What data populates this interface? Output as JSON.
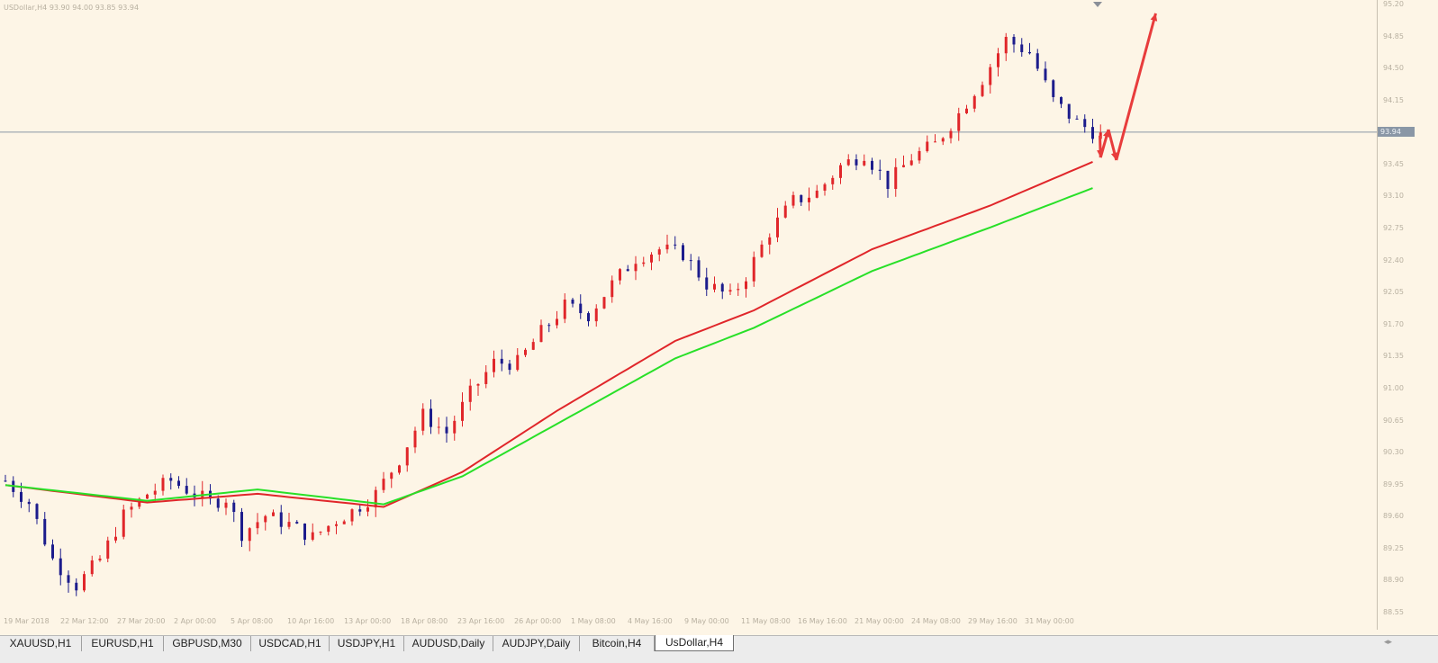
{
  "window": {
    "symbol_info": "USDollar,H4 93.90 94.00 93.85 93.94"
  },
  "price_scale": {
    "labels": [
      "95.20",
      "94.85",
      "94.50",
      "94.15",
      "93.80",
      "93.45",
      "93.10",
      "92.75",
      "92.40",
      "92.05",
      "91.70",
      "91.35",
      "91.00",
      "90.65",
      "90.30",
      "89.95",
      "89.60",
      "89.25",
      "88.90",
      "88.55"
    ],
    "current_price": "93.94"
  },
  "time_axis": {
    "labels": [
      "19 Mar 2018",
      "22 Mar 12:00",
      "27 Mar 20:00",
      "2 Apr 00:00",
      "5 Apr 08:00",
      "10 Apr 16:00",
      "13 Apr 00:00",
      "18 Apr 08:00",
      "23 Apr 16:00",
      "26 Apr 00:00",
      "1 May 08:00",
      "4 May 16:00",
      "9 May 00:00",
      "11 May 08:00",
      "16 May 16:00",
      "21 May 00:00",
      "24 May 08:00",
      "29 May 16:00",
      "31 May 00:00"
    ]
  },
  "tabs": [
    {
      "label": "XAUUSD,H1",
      "active": false
    },
    {
      "label": "EURUSD,H1",
      "active": false
    },
    {
      "label": "GBPUSD,M30",
      "active": false
    },
    {
      "label": "USDCAD,H1",
      "active": false
    },
    {
      "label": "USDJPY,H1",
      "active": false
    },
    {
      "label": "AUDUSD,Daily",
      "active": false
    },
    {
      "label": "AUDJPY,Daily",
      "active": false
    },
    {
      "label": "Bitcoin,H4",
      "active": false
    },
    {
      "label": "UsDollar,H4",
      "active": true
    }
  ],
  "colors": {
    "background": "#fdf5e6",
    "bull_candle": "#e0262a",
    "bear_candle": "#1c1c8c",
    "ma_fast": "#e0262a",
    "ma_slow": "#28e028",
    "projection_arrows": "#e83c3c",
    "current_price_line": "#8a97a6"
  },
  "chart_data": {
    "type": "candlestick",
    "symbol": "USDollar",
    "timeframe": "H4",
    "ylim": [
      88.45,
      95.35
    ],
    "current_price": 93.94,
    "trend_path": [
      [
        0,
        89.95
      ],
      [
        3,
        89.7
      ],
      [
        6,
        89.05
      ],
      [
        9,
        88.75
      ],
      [
        12,
        89.05
      ],
      [
        15,
        89.55
      ],
      [
        18,
        89.8
      ],
      [
        21,
        89.95
      ],
      [
        23,
        89.85
      ],
      [
        26,
        89.7
      ],
      [
        28,
        89.75
      ],
      [
        30,
        89.35
      ],
      [
        33,
        89.55
      ],
      [
        36,
        89.45
      ],
      [
        39,
        89.3
      ],
      [
        42,
        89.5
      ],
      [
        44,
        89.6
      ],
      [
        47,
        89.8
      ],
      [
        50,
        90.2
      ],
      [
        53,
        90.7
      ],
      [
        56,
        90.5
      ],
      [
        59,
        90.95
      ],
      [
        62,
        91.3
      ],
      [
        65,
        91.3
      ],
      [
        68,
        91.65
      ],
      [
        71,
        91.95
      ],
      [
        74,
        91.85
      ],
      [
        77,
        92.2
      ],
      [
        80,
        92.5
      ],
      [
        83,
        92.6
      ],
      [
        86,
        92.55
      ],
      [
        89,
        92.2
      ],
      [
        92,
        92.05
      ],
      [
        94,
        92.3
      ],
      [
        97,
        92.8
      ],
      [
        100,
        93.15
      ],
      [
        103,
        93.25
      ],
      [
        106,
        93.55
      ],
      [
        109,
        93.7
      ],
      [
        112,
        93.35
      ],
      [
        115,
        93.65
      ],
      [
        118,
        93.8
      ],
      [
        121,
        94.15
      ],
      [
        124,
        94.55
      ],
      [
        127,
        95.0
      ],
      [
        130,
        94.85
      ],
      [
        133,
        94.3
      ],
      [
        136,
        94.05
      ],
      [
        139,
        93.9
      ]
    ],
    "moving_averages": [
      {
        "color": "#e0262a",
        "values": [
          [
            0,
            89.9
          ],
          [
            18,
            89.7
          ],
          [
            32,
            89.8
          ],
          [
            48,
            89.65
          ],
          [
            58,
            90.05
          ],
          [
            70,
            90.75
          ],
          [
            85,
            91.55
          ],
          [
            95,
            91.9
          ],
          [
            110,
            92.6
          ],
          [
            125,
            93.1
          ],
          [
            138,
            93.6
          ]
        ]
      },
      {
        "color": "#28e028",
        "values": [
          [
            0,
            89.9
          ],
          [
            18,
            89.72
          ],
          [
            32,
            89.85
          ],
          [
            48,
            89.68
          ],
          [
            58,
            90.0
          ],
          [
            70,
            90.6
          ],
          [
            85,
            91.35
          ],
          [
            95,
            91.7
          ],
          [
            110,
            92.35
          ],
          [
            125,
            92.85
          ],
          [
            138,
            93.3
          ]
        ]
      }
    ],
    "projection_path": [
      [
        138,
        93.9
      ],
      [
        139,
        93.65
      ],
      [
        140,
        93.97
      ],
      [
        141,
        93.62
      ],
      [
        146,
        95.3
      ]
    ],
    "grid": false
  }
}
